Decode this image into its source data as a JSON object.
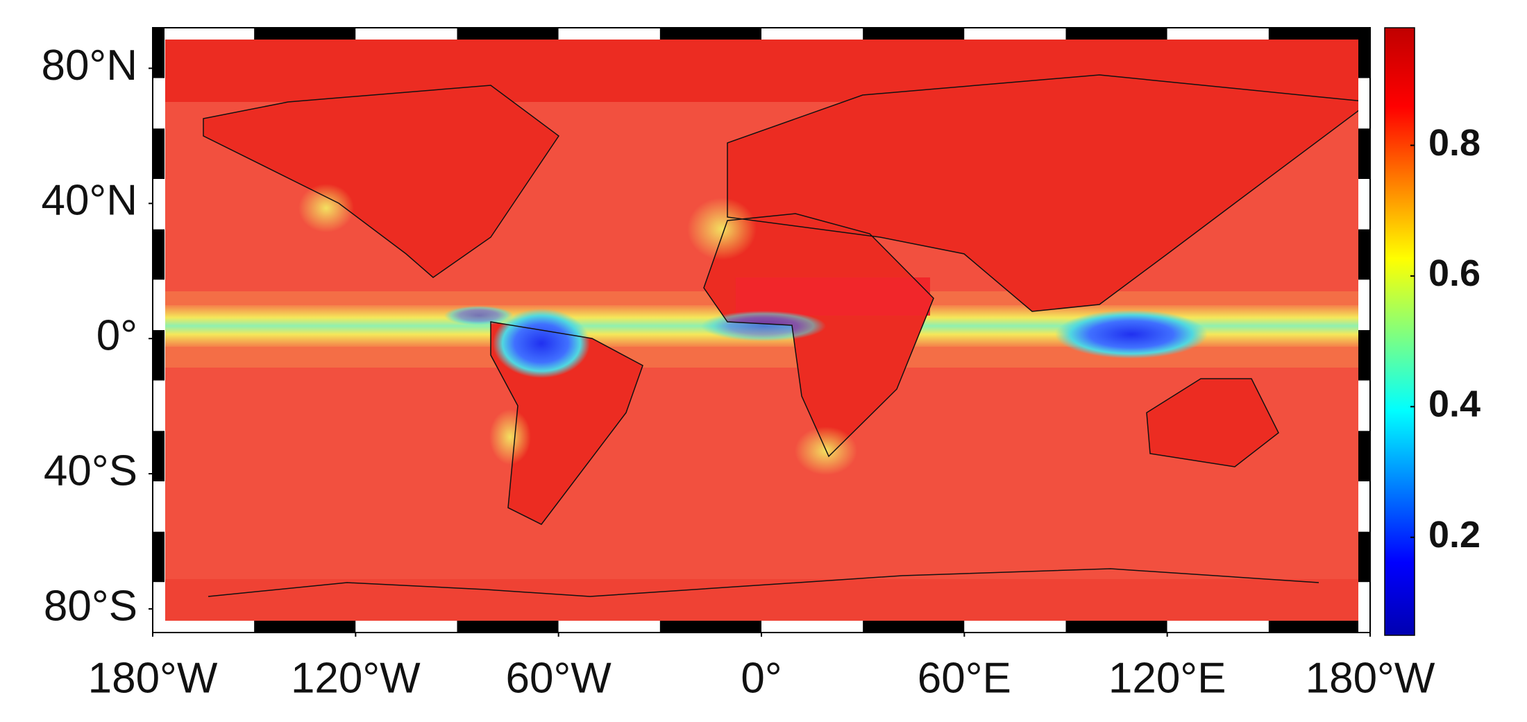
{
  "map": {
    "lonlim": [
      -180,
      180
    ],
    "latlim": [
      -87,
      92
    ],
    "lon_ticks": [
      {
        "value": -180,
        "label": "180°W"
      },
      {
        "value": -120,
        "label": "120°W"
      },
      {
        "value": -60,
        "label": "60°W"
      },
      {
        "value": 0,
        "label": "0°"
      },
      {
        "value": 60,
        "label": "60°E"
      },
      {
        "value": 120,
        "label": "120°E"
      },
      {
        "value": 180,
        "label": "180°W"
      }
    ],
    "lat_ticks": [
      {
        "value": 80,
        "label": "80°N"
      },
      {
        "value": 40,
        "label": "40°N"
      },
      {
        "value": 0,
        "label": "0°"
      },
      {
        "value": -40,
        "label": "40°S"
      },
      {
        "value": -80,
        "label": "80°S"
      }
    ],
    "colorbar": {
      "colormap": "jet",
      "clim": [
        0.05,
        0.98
      ],
      "ticks": [
        0.2,
        0.4,
        0.6,
        0.8
      ]
    }
  }
}
